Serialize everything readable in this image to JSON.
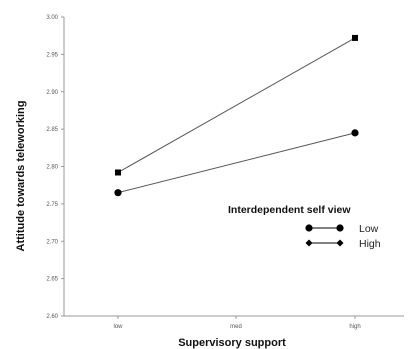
{
  "chart_data": {
    "type": "line",
    "categories": [
      "low",
      "med",
      "high"
    ],
    "ylim": [
      2.6,
      3.0
    ],
    "yticks": [
      2.6,
      2.65,
      2.7,
      2.75,
      2.8,
      2.85,
      2.9,
      2.95,
      3.0
    ],
    "ytick_labels": [
      "2.60",
      "2.65",
      "2.70",
      "2.75",
      "2.80",
      "2.85",
      "2.90",
      "2.95",
      "3.00"
    ],
    "xlabel": "Supervisory support",
    "ylabel": "Attitude towards teleworking",
    "grid": false,
    "legend": {
      "title": "Interdependent self view",
      "placement": "center-right",
      "entries": [
        "Low",
        "High"
      ]
    },
    "series": [
      {
        "name": "Low",
        "marker": "circle",
        "x": [
          "low",
          "high"
        ],
        "values": [
          2.765,
          2.845
        ]
      },
      {
        "name": "High",
        "marker": "square",
        "x": [
          "low",
          "high"
        ],
        "values": [
          2.792,
          2.972
        ]
      }
    ],
    "colors": {
      "line": "#555555",
      "marker": "#000000",
      "axis": "#999999"
    }
  }
}
